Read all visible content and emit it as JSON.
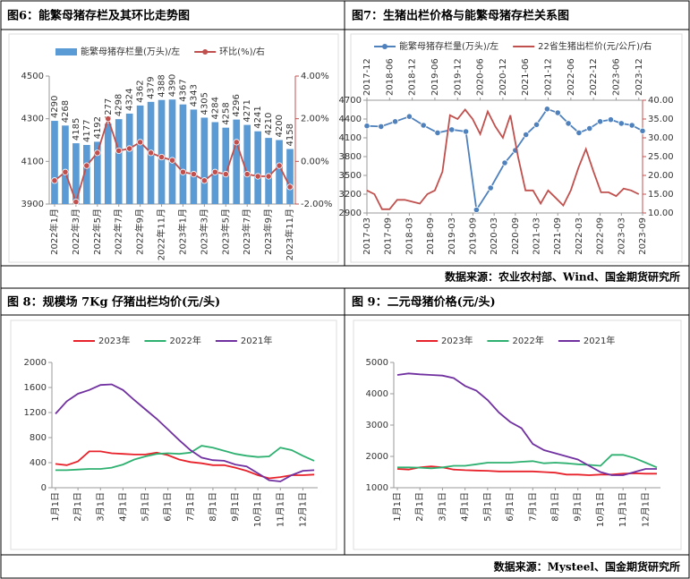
{
  "chart_data": [
    {
      "type": "bar",
      "title": "图6：能繁母猪存栏及其环比走势图",
      "categories": [
        "2022年1月",
        null,
        "2022年3月",
        null,
        "2022年5月",
        null,
        "2022年7月",
        null,
        "2022年9月",
        null,
        "2022年11月",
        null,
        "2023年1月",
        null,
        "2023年3月",
        null,
        "2023年5月",
        null,
        "2023年7月",
        null,
        "2023年9月",
        null,
        "2023年11月"
      ],
      "series": [
        {
          "name": "能繁母猪存栏量(万头)/左",
          "type": "bar",
          "color": "#5b9bd5",
          "data_labels": true,
          "values": [
            4290,
            4268,
            4185,
            4177,
            4192,
            4277,
            4298,
            4324,
            4362,
            4379,
            4388,
            4390,
            4367,
            4343,
            4305,
            4284,
            4258,
            4296,
            4271,
            4241,
            4210,
            4200,
            4158
          ]
        },
        {
          "name": "环比(%)/右",
          "type": "line",
          "axis": "y2",
          "color": "#c0504d",
          "marker": true,
          "values": [
            -0.9,
            -0.5,
            -1.9,
            -0.2,
            0.4,
            2.0,
            0.5,
            0.6,
            0.9,
            0.4,
            0.2,
            0.05,
            -0.5,
            -0.6,
            -0.9,
            -0.5,
            -0.6,
            0.9,
            -0.6,
            -0.7,
            -0.7,
            -0.2,
            -1.2
          ]
        }
      ],
      "ylim": [
        3900,
        4500
      ],
      "yticks": [
        3900,
        4100,
        4300,
        4500
      ],
      "y2lim": [
        -2,
        4
      ],
      "y2ticks": [
        {
          "value": -2,
          "label": "-2.00%"
        },
        {
          "value": 0,
          "label": "0.00%"
        },
        {
          "value": 2,
          "label": "2.00%"
        },
        {
          "value": 4,
          "label": "4.00%"
        }
      ]
    },
    {
      "type": "line",
      "title": "图7：生猪出栏价格与能繁母猪存栏关系图",
      "xlim": [
        "2017-03",
        "2023-09"
      ],
      "xticks": [
        "2017-03",
        "2017-09",
        "2018-03",
        "2018-09",
        "2019-03",
        "2019-09",
        "2020-03",
        "2020-09",
        "2021-03",
        "2021-09",
        "2022-03",
        "2022-09",
        "2023-03",
        "2023-09"
      ],
      "x2lim": [
        "2017-12",
        "2024-01"
      ],
      "x2ticks": [
        "2017-12",
        "2018-06",
        "2018-12",
        "2019-06",
        "2019-12",
        "2020-06",
        "2020-12",
        "2021-06",
        "2021-12",
        "2022-06",
        "2022-12",
        "2023-06",
        "2023-12"
      ],
      "ylim": [
        2900,
        4700
      ],
      "yticks": [
        2900,
        3200,
        3500,
        3800,
        4100,
        4400,
        4700
      ],
      "y2lim": [
        10,
        40
      ],
      "y2ticks": [
        {
          "value": 10,
          "label": "10.00"
        },
        {
          "value": 15,
          "label": "15.00"
        },
        {
          "value": 20,
          "label": "20.00"
        },
        {
          "value": 25,
          "label": "25.00"
        },
        {
          "value": 30,
          "label": "30.00"
        },
        {
          "value": 35,
          "label": "35.00"
        },
        {
          "value": 40,
          "label": "40.00"
        }
      ],
      "series": [
        {
          "name": "能繁母猪存栏量(万头)/左",
          "color": "#4f81bd",
          "marker": true,
          "x": [
            "2017-03",
            "2017-07",
            "2017-11",
            "2018-03",
            "2018-07",
            "2018-11",
            "2019-03",
            "2019-07",
            "2019-10",
            "2020-02",
            "2020-06",
            "2020-09",
            "2020-12",
            "2021-03",
            "2021-06",
            "2021-09",
            "2021-12",
            "2022-03",
            "2022-06",
            "2022-09",
            "2022-12",
            "2023-03",
            "2023-06",
            "2023-09"
          ],
          "values": [
            4290,
            4280,
            4360,
            4440,
            4300,
            4180,
            4230,
            4200,
            2950,
            3300,
            3700,
            3900,
            4150,
            4310,
            4560,
            4500,
            4330,
            4180,
            4250,
            4360,
            4390,
            4330,
            4300,
            4210
          ]
        },
        {
          "name": "22省生猪出栏价(元/公斤)/右",
          "color": "#c0504d",
          "axis": "y2",
          "xaxis": "x2",
          "x": [
            "2017-12",
            "2018-02",
            "2018-04",
            "2018-06",
            "2018-08",
            "2018-10",
            "2018-12",
            "2019-02",
            "2019-04",
            "2019-06",
            "2019-08",
            "2019-10",
            "2019-12",
            "2020-02",
            "2020-04",
            "2020-06",
            "2020-08",
            "2020-10",
            "2020-12",
            "2021-02",
            "2021-04",
            "2021-06",
            "2021-08",
            "2021-10",
            "2021-12",
            "2022-02",
            "2022-04",
            "2022-06",
            "2022-08",
            "2022-10",
            "2022-12",
            "2023-02",
            "2023-04",
            "2023-06",
            "2023-08",
            "2023-10",
            "2023-12"
          ],
          "values": [
            16,
            15,
            11,
            11,
            13.5,
            13.5,
            13,
            12.5,
            15,
            16,
            21,
            36,
            35,
            37.5,
            35,
            31,
            37,
            33,
            30,
            36,
            25,
            16,
            16,
            12.5,
            16,
            14,
            12,
            16,
            22,
            27,
            21,
            15.5,
            15.5,
            14.5,
            16.5,
            16,
            15
          ]
        }
      ]
    },
    {
      "type": "line",
      "title": "图 8：规模场 7Kg 仔猪出栏均价(元/头)",
      "categories": [
        "1月1日",
        null,
        "2月1日",
        null,
        "3月1日",
        null,
        "4月1日",
        null,
        "5月1日",
        null,
        "6月1日",
        null,
        "7月1日",
        null,
        "8月1日",
        null,
        "9月1日",
        null,
        "10月1日",
        null,
        "11月1日",
        null,
        "12月1日",
        null
      ],
      "ylim": [
        0,
        2000
      ],
      "yticks": [
        0,
        400,
        800,
        1200,
        1600,
        2000
      ],
      "series": [
        {
          "name": "2023年",
          "color": "#e8222a",
          "values": [
            380,
            360,
            420,
            580,
            580,
            550,
            540,
            530,
            530,
            560,
            520,
            450,
            410,
            390,
            360,
            360,
            320,
            270,
            200,
            150,
            170,
            200,
            200,
            210
          ]
        },
        {
          "name": "2022年",
          "color": "#2eb070",
          "values": [
            280,
            280,
            290,
            300,
            300,
            320,
            370,
            450,
            500,
            540,
            550,
            540,
            560,
            670,
            640,
            590,
            540,
            510,
            490,
            500,
            640,
            600,
            510,
            430
          ]
        },
        {
          "name": "2021年",
          "color": "#7030a0",
          "values": [
            1180,
            1380,
            1500,
            1560,
            1640,
            1650,
            1560,
            1400,
            1250,
            1100,
            930,
            760,
            600,
            480,
            440,
            430,
            370,
            340,
            230,
            120,
            100,
            200,
            270,
            280
          ]
        }
      ]
    },
    {
      "type": "line",
      "title": "图 9：二元母猪价格(元/头)",
      "categories": [
        "1月1日",
        null,
        "2月1日",
        null,
        "3月1日",
        null,
        "4月1日",
        null,
        "5月1日",
        null,
        "6月1日",
        null,
        "7月1日",
        null,
        "8月1日",
        null,
        "9月1日",
        null,
        "10月1日",
        null,
        "11月1日",
        null,
        "12月1日",
        null
      ],
      "ylim": [
        1000,
        5000
      ],
      "yticks": [
        1000,
        2000,
        3000,
        4000,
        5000
      ],
      "series": [
        {
          "name": "2023年",
          "color": "#e8222a",
          "values": [
            1600,
            1580,
            1650,
            1680,
            1650,
            1580,
            1560,
            1550,
            1540,
            1520,
            1520,
            1520,
            1520,
            1500,
            1480,
            1420,
            1420,
            1400,
            1420,
            1420,
            1450,
            1460,
            1450,
            1450
          ]
        },
        {
          "name": "2022年",
          "color": "#2eb070",
          "values": [
            1650,
            1650,
            1640,
            1620,
            1650,
            1700,
            1700,
            1750,
            1800,
            1800,
            1800,
            1830,
            1850,
            1780,
            1800,
            1780,
            1750,
            1730,
            1700,
            2050,
            2050,
            1950,
            1800,
            1650
          ]
        },
        {
          "name": "2021年",
          "color": "#7030a0",
          "values": [
            4600,
            4650,
            4620,
            4600,
            4580,
            4500,
            4250,
            4100,
            3800,
            3400,
            3100,
            2900,
            2400,
            2200,
            2100,
            2000,
            1900,
            1700,
            1500,
            1400,
            1400,
            1500,
            1600,
            1600
          ]
        }
      ]
    }
  ],
  "sources": [
    "数据来源：农业农村部、Wind、国金期货研究所",
    "数据来源：Mysteel、国金期货研究所"
  ]
}
